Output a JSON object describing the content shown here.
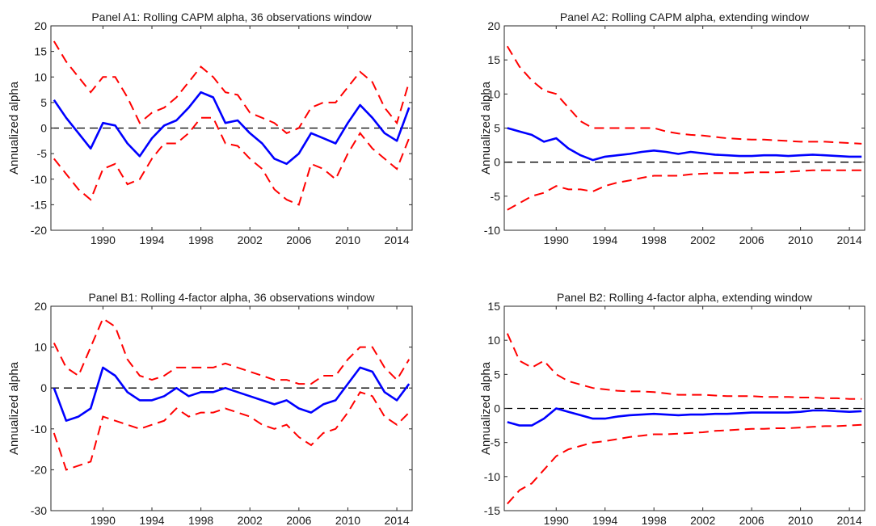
{
  "chart_data": [
    {
      "type": "line",
      "title": "Panel A1: Rolling CAPM alpha, 36 observations window",
      "ylabel": "Annualized alpha",
      "xlim": [
        1985.75,
        2015.25
      ],
      "ylim": [
        -20,
        20
      ],
      "yticks": [
        -20,
        -15,
        -10,
        -5,
        0,
        5,
        10,
        15,
        20
      ],
      "xticks": [
        1990,
        1994,
        1998,
        2002,
        2006,
        2010,
        2014
      ],
      "reference_line": 0,
      "colors": {
        "estimate": "#0000ff",
        "bands": "#ff0000",
        "reference": "#000000"
      },
      "x": [
        1986,
        1987,
        1988,
        1989,
        1990,
        1991,
        1992,
        1993,
        1994,
        1995,
        1996,
        1997,
        1998,
        1999,
        2000,
        2001,
        2002,
        2003,
        2004,
        2005,
        2006,
        2007,
        2008,
        2009,
        2010,
        2011,
        2012,
        2013,
        2014,
        2015
      ],
      "series": [
        {
          "role": "estimate",
          "values": [
            5.5,
            2,
            -1,
            -4,
            1,
            0.5,
            -3,
            -5.5,
            -2,
            0.5,
            1.5,
            4,
            7,
            6,
            1,
            1.5,
            -1,
            -3,
            -6,
            -7,
            -5,
            -1,
            -2,
            -3,
            1,
            4.5,
            2,
            -1,
            -2.5,
            4
          ]
        },
        {
          "role": "upper",
          "values": [
            17,
            13,
            10,
            7,
            10,
            10,
            6,
            1,
            3,
            4,
            6,
            9,
            12,
            10,
            7,
            6.5,
            3,
            2,
            1,
            -1,
            0,
            4,
            5,
            5,
            8,
            11,
            9,
            4,
            1,
            9
          ]
        },
        {
          "role": "lower",
          "values": [
            -6,
            -9,
            -12,
            -14,
            -8,
            -7,
            -11,
            -10,
            -6,
            -3,
            -3,
            -1,
            2,
            2,
            -3,
            -3.5,
            -6,
            -8,
            -12,
            -14,
            -15,
            -7,
            -8,
            -10,
            -5,
            -1,
            -4,
            -6,
            -8,
            -2
          ]
        }
      ]
    },
    {
      "type": "line",
      "title": "Panel A2: Rolling CAPM alpha, extending window",
      "ylabel": "Annualized alpha",
      "xlim": [
        1985.75,
        2015.25
      ],
      "ylim": [
        -10,
        20
      ],
      "yticks": [
        -10,
        -5,
        0,
        5,
        10,
        15,
        20
      ],
      "xticks": [
        1990,
        1994,
        1998,
        2002,
        2006,
        2010,
        2014
      ],
      "reference_line": 0,
      "colors": {
        "estimate": "#0000ff",
        "bands": "#ff0000",
        "reference": "#000000"
      },
      "x": [
        1986,
        1987,
        1988,
        1989,
        1990,
        1991,
        1992,
        1993,
        1994,
        1995,
        1996,
        1997,
        1998,
        1999,
        2000,
        2001,
        2002,
        2003,
        2004,
        2005,
        2006,
        2007,
        2008,
        2009,
        2010,
        2011,
        2012,
        2013,
        2014,
        2015
      ],
      "series": [
        {
          "role": "estimate",
          "values": [
            5,
            4.5,
            4,
            3,
            3.5,
            2,
            1,
            0.3,
            0.8,
            1,
            1.2,
            1.5,
            1.7,
            1.5,
            1.2,
            1.5,
            1.3,
            1.1,
            1,
            0.9,
            0.9,
            1,
            1,
            0.9,
            1,
            1.1,
            1,
            0.9,
            0.8,
            0.8
          ]
        },
        {
          "role": "upper",
          "values": [
            17,
            14,
            12,
            10.5,
            10,
            8,
            6,
            5,
            5,
            5,
            5,
            5,
            5,
            4.5,
            4.2,
            4,
            3.9,
            3.7,
            3.5,
            3.4,
            3.3,
            3.3,
            3.2,
            3.1,
            3,
            3,
            3,
            2.9,
            2.8,
            2.7
          ]
        },
        {
          "role": "lower",
          "values": [
            -7,
            -6,
            -5,
            -4.5,
            -3.5,
            -4,
            -4,
            -4.3,
            -3.5,
            -3,
            -2.7,
            -2.3,
            -2,
            -2,
            -2,
            -1.8,
            -1.7,
            -1.6,
            -1.6,
            -1.6,
            -1.5,
            -1.5,
            -1.5,
            -1.4,
            -1.3,
            -1.2,
            -1.2,
            -1.2,
            -1.2,
            -1.2
          ]
        }
      ]
    },
    {
      "type": "line",
      "title": "Panel B1: Rolling 4-factor alpha, 36 observations window",
      "ylabel": "Annualized alpha",
      "xlim": [
        1985.75,
        2015.25
      ],
      "ylim": [
        -30,
        20
      ],
      "yticks": [
        -30,
        -20,
        -10,
        0,
        10,
        20
      ],
      "xticks": [
        1990,
        1994,
        1998,
        2002,
        2006,
        2010,
        2014
      ],
      "reference_line": 0,
      "colors": {
        "estimate": "#0000ff",
        "bands": "#ff0000",
        "reference": "#000000"
      },
      "x": [
        1986,
        1987,
        1988,
        1989,
        1990,
        1991,
        1992,
        1993,
        1994,
        1995,
        1996,
        1997,
        1998,
        1999,
        2000,
        2001,
        2002,
        2003,
        2004,
        2005,
        2006,
        2007,
        2008,
        2009,
        2010,
        2011,
        2012,
        2013,
        2014,
        2015
      ],
      "series": [
        {
          "role": "estimate",
          "values": [
            0,
            -8,
            -7,
            -5,
            5,
            3,
            -1,
            -3,
            -3,
            -2,
            0,
            -2,
            -1,
            -1,
            0,
            -1,
            -2,
            -3,
            -4,
            -3,
            -5,
            -6,
            -4,
            -3,
            1,
            5,
            4,
            -1,
            -3,
            1
          ]
        },
        {
          "role": "upper",
          "values": [
            11,
            5,
            3,
            10,
            17,
            15,
            7,
            3,
            2,
            3,
            5,
            5,
            5,
            5,
            6,
            5,
            4,
            3,
            2,
            2,
            1,
            1,
            3,
            3,
            7,
            10,
            10,
            5,
            2,
            7
          ]
        },
        {
          "role": "lower",
          "values": [
            -11,
            -20,
            -19,
            -18,
            -7,
            -8,
            -9,
            -10,
            -9,
            -8,
            -5,
            -7,
            -6,
            -6,
            -5,
            -6,
            -7,
            -9,
            -10,
            -9,
            -12,
            -14,
            -11,
            -10,
            -6,
            -1,
            -2,
            -7,
            -9,
            -6
          ]
        }
      ]
    },
    {
      "type": "line",
      "title": "Panel B2: Rolling 4-factor alpha, extending window",
      "ylabel": "Annualized alpha",
      "xlim": [
        1985.75,
        2015.25
      ],
      "ylim": [
        -15,
        15
      ],
      "yticks": [
        -15,
        -10,
        -5,
        0,
        5,
        10,
        15
      ],
      "xticks": [
        1990,
        1994,
        1998,
        2002,
        2006,
        2010,
        2014
      ],
      "reference_line": 0,
      "colors": {
        "estimate": "#0000ff",
        "bands": "#ff0000",
        "reference": "#000000"
      },
      "x": [
        1986,
        1987,
        1988,
        1989,
        1990,
        1991,
        1992,
        1993,
        1994,
        1995,
        1996,
        1997,
        1998,
        1999,
        2000,
        2001,
        2002,
        2003,
        2004,
        2005,
        2006,
        2007,
        2008,
        2009,
        2010,
        2011,
        2012,
        2013,
        2014,
        2015
      ],
      "series": [
        {
          "role": "estimate",
          "values": [
            -2,
            -2.5,
            -2.5,
            -1.5,
            0,
            -0.5,
            -1,
            -1.5,
            -1.5,
            -1.2,
            -1,
            -0.9,
            -0.8,
            -0.9,
            -1,
            -0.9,
            -0.9,
            -0.8,
            -0.8,
            -0.7,
            -0.6,
            -0.6,
            -0.6,
            -0.6,
            -0.5,
            -0.3,
            -0.3,
            -0.4,
            -0.5,
            -0.4
          ]
        },
        {
          "role": "upper",
          "values": [
            11,
            7,
            6,
            7,
            5,
            4,
            3.5,
            3,
            2.8,
            2.6,
            2.5,
            2.5,
            2.4,
            2.2,
            2,
            2,
            2,
            1.9,
            1.8,
            1.8,
            1.8,
            1.7,
            1.7,
            1.7,
            1.6,
            1.6,
            1.5,
            1.5,
            1.4,
            1.4
          ]
        },
        {
          "role": "lower",
          "values": [
            -14,
            -12,
            -11,
            -9,
            -7,
            -6,
            -5.5,
            -5,
            -4.8,
            -4.5,
            -4.2,
            -4,
            -3.8,
            -3.8,
            -3.7,
            -3.6,
            -3.5,
            -3.3,
            -3.2,
            -3.1,
            -3,
            -3,
            -2.9,
            -2.9,
            -2.8,
            -2.7,
            -2.6,
            -2.6,
            -2.5,
            -2.4
          ]
        }
      ]
    }
  ]
}
